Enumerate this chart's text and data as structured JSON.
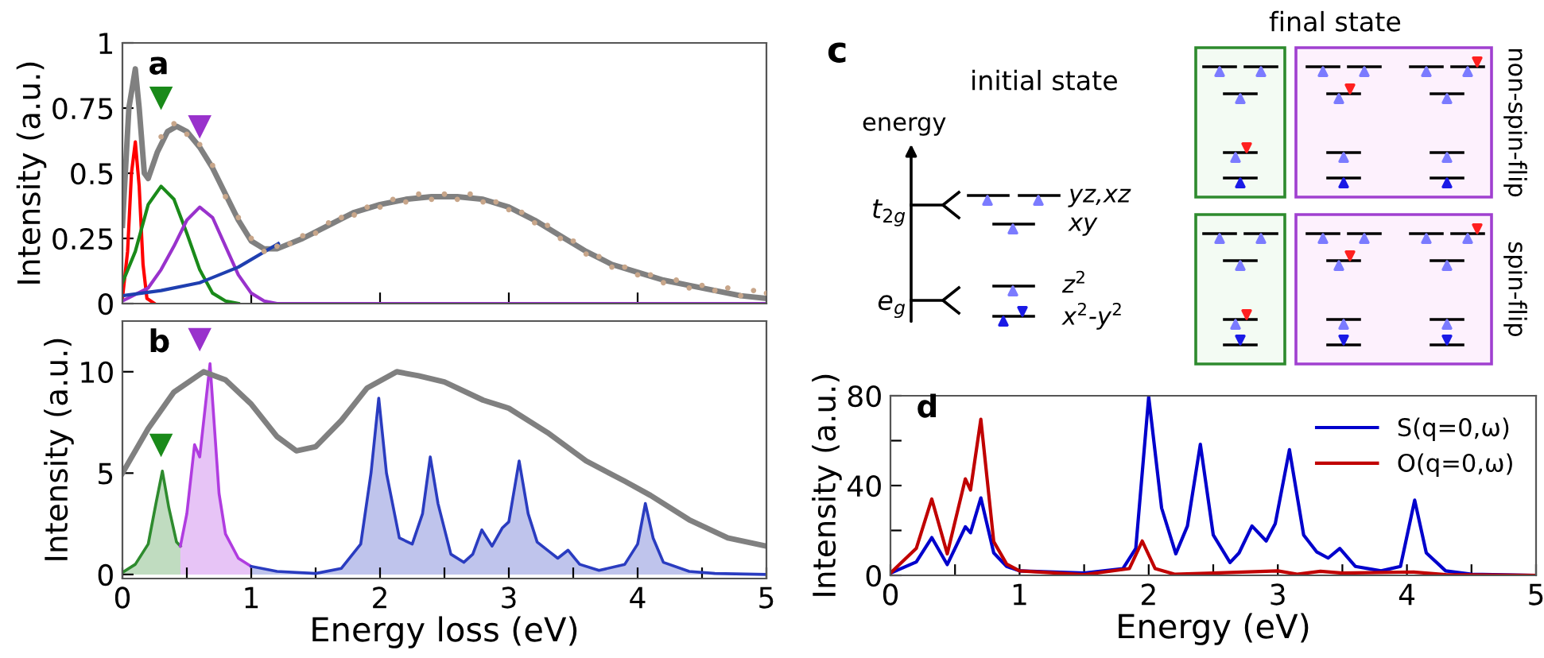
{
  "chart_data": [
    {
      "type": "line",
      "ylabel": "Intensity (a.u.)",
      "annotations": [
        "a"
      ],
      "xlim": [
        0,
        5
      ],
      "ylim": [
        0,
        1
      ],
      "tick_labels": "y",
      "xticks": [
        {
          "value": 1,
          "label": null
        },
        {
          "value": 2,
          "label": null
        },
        {
          "value": 3,
          "label": null
        },
        {
          "value": 4,
          "label": null
        }
      ],
      "yticks": [
        0,
        0.25,
        0.5,
        0.75,
        1
      ],
      "series": [
        {
          "type": "scatter",
          "marker": "circle",
          "color": "#c8a68a",
          "x": [
            0.3,
            0.4,
            0.5,
            0.6,
            0.7,
            0.8,
            0.9,
            1.0,
            1.1,
            1.2,
            1.3,
            1.4,
            1.5,
            1.6,
            1.7,
            1.8,
            1.9,
            2.0,
            2.1,
            2.2,
            2.3,
            2.4,
            2.5,
            2.6,
            2.7,
            2.8,
            2.9,
            3.0,
            3.1,
            3.2,
            3.3,
            3.4,
            3.5,
            3.6,
            3.7,
            3.8,
            3.9,
            4.0,
            4.1,
            4.2,
            4.3,
            4.4,
            4.5,
            4.6,
            4.7,
            4.8,
            4.9,
            5.0
          ],
          "values": [
            0.64,
            0.69,
            0.65,
            0.61,
            0.53,
            0.41,
            0.33,
            0.25,
            0.2,
            0.22,
            0.23,
            0.26,
            0.27,
            0.31,
            0.33,
            0.34,
            0.37,
            0.37,
            0.4,
            0.39,
            0.42,
            0.4,
            0.42,
            0.4,
            0.42,
            0.39,
            0.39,
            0.36,
            0.35,
            0.31,
            0.3,
            0.25,
            0.24,
            0.19,
            0.18,
            0.14,
            0.14,
            0.11,
            0.11,
            0.08,
            0.09,
            0.06,
            0.07,
            0.05,
            0.06,
            0.03,
            0.05,
            0.04
          ]
        },
        {
          "type": "line",
          "color": "#808080",
          "x": [
            0,
            0.05,
            0.1,
            0.13,
            0.17,
            0.2,
            0.27,
            0.35,
            0.42,
            0.5,
            0.6,
            0.7,
            0.8,
            0.9,
            1.0,
            1.1,
            1.2,
            1.4,
            1.6,
            1.8,
            2.0,
            2.2,
            2.4,
            2.6,
            2.8,
            3.0,
            3.2,
            3.4,
            3.6,
            3.8,
            4.0,
            4.2,
            4.4,
            4.6,
            4.8,
            5.0
          ],
          "values": [
            0.3,
            0.75,
            0.9,
            0.75,
            0.5,
            0.48,
            0.58,
            0.66,
            0.68,
            0.66,
            0.6,
            0.52,
            0.42,
            0.32,
            0.24,
            0.21,
            0.21,
            0.25,
            0.3,
            0.35,
            0.38,
            0.4,
            0.41,
            0.41,
            0.4,
            0.37,
            0.32,
            0.26,
            0.2,
            0.15,
            0.12,
            0.09,
            0.07,
            0.05,
            0.03,
            0.02
          ]
        },
        {
          "type": "line",
          "color": "#ff0000",
          "x": [
            0,
            0.04,
            0.07,
            0.1,
            0.13,
            0.16,
            0.19,
            0.25
          ],
          "values": [
            0.02,
            0.2,
            0.5,
            0.62,
            0.45,
            0.15,
            0.02,
            0
          ]
        },
        {
          "type": "line",
          "color": "#1a8a1a",
          "x": [
            0,
            0.1,
            0.2,
            0.3,
            0.4,
            0.5,
            0.6,
            0.7,
            0.8,
            0.9
          ],
          "values": [
            0.08,
            0.2,
            0.38,
            0.45,
            0.4,
            0.27,
            0.13,
            0.04,
            0.01,
            0
          ]
        },
        {
          "type": "line",
          "color": "#9932cc",
          "x": [
            0,
            0.2,
            0.3,
            0.4,
            0.5,
            0.6,
            0.7,
            0.8,
            0.9,
            1.0,
            1.1,
            1.2,
            5.0
          ],
          "values": [
            0.01,
            0.06,
            0.13,
            0.22,
            0.32,
            0.37,
            0.33,
            0.22,
            0.11,
            0.04,
            0.01,
            0,
            0
          ]
        },
        {
          "type": "line",
          "color": "#1f3fb0",
          "x": [
            0,
            0.3,
            0.6,
            0.9,
            1.21
          ],
          "values": [
            0.03,
            0.05,
            0.08,
            0.14,
            0.23
          ]
        }
      ]
    },
    {
      "type": "area",
      "ylabel": "Intensity (a.u.)",
      "xlabel": "Energy loss (eV)",
      "annotations": [
        "b"
      ],
      "xlim": [
        0,
        5
      ],
      "ylim": [
        -0.2,
        12.5
      ],
      "xticks": [
        0,
        {
          "value": 0.5,
          "label": null
        },
        1,
        {
          "value": 1.5,
          "label": null
        },
        2,
        {
          "value": 2.5,
          "label": null
        },
        3,
        {
          "value": 3.5,
          "label": null
        },
        4,
        {
          "value": 4.5,
          "label": null
        },
        5
      ],
      "yticks": [
        0,
        5,
        10
      ],
      "series": [
        {
          "type": "area",
          "color": "#2e8b2e",
          "x": [
            0,
            0.1,
            0.2,
            0.26,
            0.31,
            0.36,
            0.42,
            0.45
          ],
          "values": [
            0.1,
            0.5,
            1.5,
            3.5,
            5.1,
            3.3,
            1.6,
            1.4
          ]
        },
        {
          "type": "area",
          "color": "#b03ce0",
          "x": [
            0.45,
            0.5,
            0.56,
            0.6,
            0.68,
            0.75,
            0.8,
            0.9,
            1.0
          ],
          "values": [
            1.4,
            3,
            6.4,
            5.8,
            10.4,
            4,
            2,
            0.8,
            0.4
          ]
        },
        {
          "type": "area",
          "color": "#2a3cc0",
          "x": [
            1.0,
            1.2,
            1.5,
            1.7,
            1.85,
            1.93,
            1.99,
            2.05,
            2.15,
            2.25,
            2.33,
            2.39,
            2.45,
            2.55,
            2.65,
            2.72,
            2.79,
            2.87,
            2.95,
            3.0,
            3.08,
            3.15,
            3.22,
            3.32,
            3.38,
            3.46,
            3.55,
            3.7,
            3.9,
            4.0,
            4.06,
            4.12,
            4.2,
            4.4,
            4.6,
            5.0
          ],
          "values": [
            0.4,
            0.15,
            0.05,
            0.3,
            1.5,
            5,
            8.7,
            5,
            1.8,
            1.5,
            3,
            5.8,
            3.5,
            1.0,
            0.6,
            1.0,
            2.2,
            1.4,
            2.3,
            2.6,
            5.6,
            3.0,
            1.6,
            1.1,
            0.8,
            1.2,
            0.5,
            0.2,
            0.5,
            1.5,
            3.5,
            1.8,
            0.6,
            0.15,
            0.05,
            0
          ]
        },
        {
          "type": "line",
          "color": "#808080",
          "x": [
            0,
            0.2,
            0.4,
            0.63,
            0.8,
            1.0,
            1.2,
            1.35,
            1.5,
            1.7,
            1.9,
            2.13,
            2.3,
            2.5,
            2.8,
            3.0,
            3.3,
            3.6,
            3.9,
            4.1,
            4.4,
            4.7,
            5.0
          ],
          "values": [
            5.0,
            7.2,
            9.0,
            10.0,
            9.6,
            8.4,
            6.8,
            6.1,
            6.3,
            7.6,
            9.2,
            10.0,
            9.8,
            9.5,
            8.6,
            8.2,
            7.0,
            5.6,
            4.6,
            3.9,
            2.7,
            1.8,
            1.4
          ]
        }
      ]
    },
    {
      "type": "other",
      "annotations": [
        "c",
        "initial state",
        "final state",
        "energy",
        "t$_{2g}$",
        "e$_{g}$",
        "yz,xz",
        "xy",
        "z$^{2}$",
        "x$^{2}$-y$^{2}$",
        "non-spin-flip",
        "spin-flip"
      ]
    },
    {
      "type": "line",
      "ylabel": "Intensity (a.u.)",
      "xlabel": "Energy (eV)",
      "annotations": [
        "d"
      ],
      "xlim": [
        0,
        5
      ],
      "ylim": [
        0,
        80
      ],
      "legend": "top right",
      "xticks": [
        0,
        {
          "value": 0.5,
          "label": null
        },
        1,
        {
          "value": 1.5,
          "label": null
        },
        2,
        {
          "value": 2.5,
          "label": null
        },
        3,
        {
          "value": 3.5,
          "label": null
        },
        4,
        {
          "value": 4.5,
          "label": null
        },
        5
      ],
      "yticks": [
        0,
        {
          "value": 20,
          "label": null
        },
        40,
        {
          "value": 60,
          "label": null
        },
        80
      ],
      "series": [
        {
          "name": "S(q=0,ω)",
          "color": "#0000cc",
          "x": [
            0,
            0.2,
            0.32,
            0.44,
            0.58,
            0.62,
            0.7,
            0.8,
            0.9,
            1.0,
            1.5,
            1.8,
            1.9,
            2.0,
            2.1,
            2.21,
            2.3,
            2.4,
            2.5,
            2.63,
            2.7,
            2.8,
            2.91,
            2.98,
            3.09,
            3.2,
            3.3,
            3.39,
            3.48,
            3.6,
            3.8,
            3.95,
            4.06,
            4.15,
            4.3,
            4.5,
            5.0
          ],
          "values": [
            1,
            6,
            16.8,
            4.8,
            21.6,
            19,
            34.5,
            10,
            4,
            2,
            1,
            3,
            12,
            79.5,
            30,
            9.6,
            22,
            58.4,
            18,
            5.7,
            10,
            22,
            15.3,
            23,
            56,
            18,
            10.5,
            7.7,
            12,
            4,
            2,
            4,
            33.5,
            10,
            2,
            0.5,
            0
          ]
        },
        {
          "name": "O(q=0,ω)",
          "color": "#c00000",
          "x": [
            0,
            0.2,
            0.32,
            0.44,
            0.58,
            0.62,
            0.7,
            0.8,
            0.9,
            1.0,
            1.5,
            1.85,
            1.95,
            2.05,
            2.2,
            2.5,
            3.0,
            3.15,
            3.33,
            3.5,
            4.05,
            4.3,
            5.0
          ],
          "values": [
            1,
            12,
            34,
            9.6,
            43,
            38,
            69.5,
            15,
            5,
            2,
            0.3,
            3,
            15.3,
            3,
            0.5,
            1,
            2,
            0.5,
            1.8,
            1,
            1.5,
            0.3,
            0
          ]
        }
      ]
    }
  ]
}
